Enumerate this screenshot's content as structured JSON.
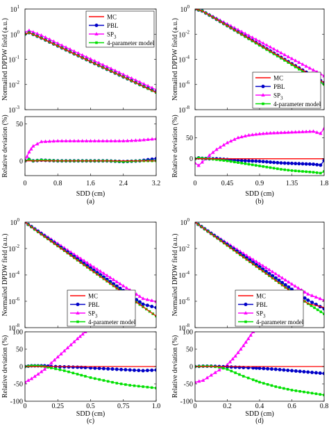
{
  "figure": {
    "series_styles": [
      {
        "name": "MC",
        "color": "#ff0000",
        "marker": "none"
      },
      {
        "name": "PBL",
        "color": "#0000c8",
        "marker": "circle"
      },
      {
        "name": "SP3",
        "color": "#ff00ff",
        "marker": "triangle"
      },
      {
        "name": "4-parameter model",
        "color": "#00e000",
        "marker": "square"
      }
    ],
    "legend_labels": {
      "mc": "MC",
      "pbl": "PBL",
      "sp_base": "SP",
      "sp_sub": "3",
      "four_param": "4-parameter model"
    }
  },
  "chart_data": [
    {
      "panel": "a",
      "caption": "(a)",
      "xlabel": "SDD (cm)",
      "x_ticks": [
        "0",
        "0.8",
        "1.6",
        "2.4",
        "3.2"
      ],
      "xlim": [
        0,
        3.2
      ],
      "top": {
        "type": "line",
        "ylabel": "Normailed DPDW field (a.u.)",
        "yscale": "log",
        "ylim": [
          0.001,
          10
        ],
        "y_tick_exponents": [
          "1",
          "0",
          "-1",
          "-2",
          "-3"
        ],
        "legend_position": "top-right",
        "x": [
          0,
          0.1,
          0.4,
          0.8,
          1.2,
          1.6,
          2.0,
          2.4,
          2.8,
          3.2
        ],
        "series": [
          {
            "name": "MC",
            "values": [
              1.0,
              1.15,
              0.7,
              0.34,
              0.165,
              0.081,
              0.04,
              0.02,
              0.0098,
              0.0048
            ]
          },
          {
            "name": "PBL",
            "values": [
              1.0,
              1.15,
              0.7,
              0.34,
              0.165,
              0.081,
              0.04,
              0.02,
              0.0099,
              0.005
            ]
          },
          {
            "name": "SP3",
            "values": [
              1.2,
              1.4,
              0.9,
              0.43,
              0.21,
              0.103,
              0.051,
              0.025,
              0.0125,
              0.0062
            ]
          },
          {
            "name": "4-parameter model",
            "values": [
              1.0,
              1.15,
              0.7,
              0.34,
              0.165,
              0.081,
              0.04,
              0.02,
              0.0098,
              0.0048
            ]
          }
        ]
      },
      "bottom": {
        "type": "line",
        "ylabel": "Relative deviation (%)",
        "ylim": [
          -20,
          60
        ],
        "y_ticks": [
          "0",
          "50"
        ],
        "x": [
          0,
          0.1,
          0.2,
          0.4,
          0.8,
          1.2,
          1.6,
          2.0,
          2.4,
          2.8,
          3.2
        ],
        "series": [
          {
            "name": "MC",
            "values": [
              0,
              0,
              0,
              0,
              0,
              0,
              0,
              0,
              0,
              0,
              0
            ]
          },
          {
            "name": "PBL",
            "values": [
              0,
              2,
              0,
              1,
              0,
              0,
              0,
              0,
              -1,
              0,
              3
            ]
          },
          {
            "name": "SP3",
            "values": [
              0,
              12,
              20,
              26,
              27,
              27,
              27,
              27,
              27,
              28,
              30
            ]
          },
          {
            "name": "4-parameter model",
            "values": [
              0,
              2,
              0,
              1,
              0,
              0,
              0,
              0,
              -1,
              0,
              0
            ]
          }
        ]
      }
    },
    {
      "panel": "b",
      "caption": "(b)",
      "xlabel": "SDD (cm)",
      "x_ticks": [
        "0",
        "0.45",
        "0.9",
        "1.35",
        "1.8"
      ],
      "xlim": [
        0,
        1.8
      ],
      "top": {
        "type": "line",
        "ylabel": "Normailed DPDW field (a.u.)",
        "yscale": "log",
        "ylim": [
          1e-08,
          1
        ],
        "y_tick_exponents": [
          "0",
          "-2",
          "-4",
          "-6",
          "-8"
        ],
        "legend_position": "bottom-right",
        "x": [
          0,
          0.1,
          0.3,
          0.5,
          0.7,
          0.9,
          1.1,
          1.3,
          1.5,
          1.7,
          1.8
        ],
        "series": [
          {
            "name": "MC",
            "values": [
              1.0,
              0.7,
              0.15,
              0.032,
              0.0068,
              0.00145,
              0.00031,
              6.6e-05,
              1.4e-05,
              3e-06,
              1.4e-06
            ]
          },
          {
            "name": "PBL",
            "values": [
              1.0,
              0.7,
              0.15,
              0.032,
              0.0068,
              0.00145,
              0.00031,
              6.6e-05,
              1.4e-05,
              3e-06,
              1.4e-06
            ]
          },
          {
            "name": "SP3",
            "values": [
              1.0,
              0.72,
              0.18,
              0.045,
              0.011,
              0.0027,
              0.00066,
              0.00016,
              4e-05,
              1e-05,
              4.8e-06
            ]
          },
          {
            "name": "4-parameter model",
            "values": [
              1.0,
              0.7,
              0.15,
              0.031,
              0.0064,
              0.0013,
              0.00027,
              5.6e-05,
              1.1e-05,
              2.3e-06,
              1e-06
            ]
          }
        ]
      },
      "bottom": {
        "type": "line",
        "ylabel": "Relative deviation (%)",
        "ylim": [
          -40,
          100
        ],
        "y_ticks": [
          "0",
          "50"
        ],
        "x": [
          0,
          0.05,
          0.1,
          0.2,
          0.3,
          0.45,
          0.6,
          0.75,
          0.9,
          1.05,
          1.2,
          1.35,
          1.5,
          1.65,
          1.75,
          1.8
        ],
        "series": [
          {
            "name": "MC",
            "values": [
              0,
              0,
              0,
              0,
              0,
              0,
              0,
              0,
              0,
              0,
              0,
              0,
              0,
              0,
              0,
              0
            ]
          },
          {
            "name": "PBL",
            "values": [
              0,
              2,
              1,
              0,
              0,
              -2,
              -4,
              -5,
              -6,
              -8,
              -10,
              -11,
              -12,
              -13,
              -15,
              -4
            ]
          },
          {
            "name": "SP3",
            "values": [
              -10,
              -16,
              -8,
              8,
              22,
              38,
              50,
              56,
              59,
              61,
              62,
              63,
              64,
              65,
              60,
              72
            ]
          },
          {
            "name": "4-parameter model",
            "values": [
              0,
              2,
              1,
              0,
              -2,
              -5,
              -9,
              -13,
              -17,
              -21,
              -25,
              -28,
              -30,
              -32,
              -34,
              -30
            ]
          }
        ]
      }
    },
    {
      "panel": "c",
      "caption": "(c)",
      "xlabel": "SDD (cm)",
      "x_ticks": [
        "0",
        "0.25",
        "0.5",
        "0.75",
        "1.0"
      ],
      "xlim": [
        0,
        1.0
      ],
      "top": {
        "type": "line",
        "ylabel": "Normailed DPDW field (a.u.)",
        "yscale": "log",
        "ylim": [
          1e-08,
          1
        ],
        "y_tick_exponents": [
          "0",
          "-2",
          "-4",
          "-6",
          "-8"
        ],
        "legend_position": "bottom-left",
        "x": [
          0,
          0.1,
          0.2,
          0.3,
          0.4,
          0.5,
          0.6,
          0.7,
          0.8,
          0.9,
          1.0
        ],
        "series": [
          {
            "name": "MC",
            "values": [
              1.0,
              0.18,
              0.035,
              0.0068,
              0.0013,
              0.00025,
              5e-05,
              9.8e-06,
              1.9e-06,
              3.8e-07,
              7.5e-08
            ]
          },
          {
            "name": "PBL",
            "values": [
              1.0,
              0.2,
              0.04,
              0.008,
              0.0016,
              0.00033,
              6.8e-05,
              1.4e-05,
              2.9e-06,
              6e-07,
              3.3e-07
            ]
          },
          {
            "name": "SP3",
            "values": [
              1.0,
              0.22,
              0.05,
              0.011,
              0.0025,
              0.00056,
              0.00013,
              3e-05,
              7e-06,
              1.6e-06,
              9.5e-07
            ]
          },
          {
            "name": "4-parameter model",
            "values": [
              1.0,
              0.18,
              0.035,
              0.0068,
              0.0013,
              0.00025,
              5e-05,
              9.8e-06,
              1.9e-06,
              3.8e-07,
              7.5e-08
            ]
          }
        ]
      },
      "bottom": {
        "type": "line",
        "ylabel": "Relative deviation (%)",
        "ylim": [
          -100,
          100
        ],
        "y_ticks": [
          "-100",
          "-50",
          "0",
          "50",
          "100"
        ],
        "x": [
          0,
          0.05,
          0.1,
          0.15,
          0.2,
          0.3,
          0.4,
          0.46,
          0.5,
          0.6,
          0.7,
          0.8,
          0.9,
          1.0
        ],
        "series": [
          {
            "name": "MC",
            "values": [
              0,
              0,
              0,
              0,
              0,
              0,
              0,
              0,
              0,
              0,
              0,
              0,
              0,
              0
            ]
          },
          {
            "name": "PBL",
            "values": [
              0,
              2,
              2,
              2,
              0,
              -1,
              -2,
              -3,
              -4,
              -6,
              -8,
              -10,
              -12,
              -10
            ]
          },
          {
            "name": "SP3",
            "values": [
              -45,
              -35,
              -22,
              -8,
              10,
              45,
              80,
              100,
              null,
              null,
              null,
              null,
              null,
              null
            ]
          },
          {
            "name": "4-parameter model",
            "values": [
              0,
              2,
              2,
              0,
              -4,
              -12,
              -22,
              -28,
              -32,
              -40,
              -48,
              -54,
              -58,
              -62
            ]
          }
        ]
      }
    },
    {
      "panel": "d",
      "caption": "(d)",
      "xlabel": "SDD (cm)",
      "x_ticks": [
        "0",
        "0.2",
        "0.4",
        "0.6",
        "0.8"
      ],
      "xlim": [
        0,
        0.8
      ],
      "top": {
        "type": "line",
        "ylabel": "Normailed DPDW field (a.u.)",
        "yscale": "log",
        "ylim": [
          1e-08,
          1
        ],
        "y_tick_exponents": [
          "0",
          "-2",
          "-4",
          "-6",
          "-8"
        ],
        "legend_position": "bottom-left",
        "x": [
          0,
          0.1,
          0.2,
          0.3,
          0.4,
          0.5,
          0.6,
          0.7,
          0.8
        ],
        "series": [
          {
            "name": "MC",
            "values": [
              1.0,
              0.13,
              0.017,
              0.0022,
              0.00029,
              3.8e-05,
              5e-06,
              6.6e-07,
              3.4e-07
            ]
          },
          {
            "name": "PBL",
            "values": [
              1.0,
              0.14,
              0.02,
              0.0028,
              0.0004,
              5.7e-05,
              8e-06,
              1.2e-06,
              2.7e-07
            ]
          },
          {
            "name": "SP3",
            "values": [
              1.0,
              0.15,
              0.025,
              0.0042,
              0.0007,
              0.00012,
              2e-05,
              3.5e-06,
              1.2e-06
            ]
          },
          {
            "name": "4-parameter model",
            "values": [
              1.0,
              0.13,
              0.017,
              0.0022,
              0.00029,
              3.8e-05,
              5e-06,
              6.6e-07,
              1.1e-07
            ]
          }
        ]
      },
      "bottom": {
        "type": "line",
        "ylabel": "Relative deviation (%)",
        "ylim": [
          -100,
          100
        ],
        "y_ticks": [
          "-100",
          "-50",
          "0",
          "50",
          "100"
        ],
        "x": [
          0,
          0.05,
          0.1,
          0.15,
          0.2,
          0.25,
          0.3,
          0.36,
          0.4,
          0.5,
          0.6,
          0.7,
          0.8
        ],
        "series": [
          {
            "name": "MC",
            "values": [
              0,
              0,
              0,
              0,
              0,
              0,
              0,
              0,
              0,
              0,
              0,
              0,
              0
            ]
          },
          {
            "name": "PBL",
            "values": [
              0,
              1,
              1,
              0,
              -1,
              -2,
              -3,
              -4,
              -5,
              -8,
              -12,
              -16,
              -20
            ]
          },
          {
            "name": "SP3",
            "values": [
              -45,
              -40,
              -25,
              -10,
              5,
              30,
              60,
              100,
              null,
              null,
              null,
              null,
              null
            ]
          },
          {
            "name": "4-parameter model",
            "values": [
              0,
              1,
              1,
              -2,
              -8,
              -18,
              -28,
              -38,
              -45,
              -58,
              -68,
              -75,
              -82
            ]
          }
        ]
      }
    }
  ]
}
